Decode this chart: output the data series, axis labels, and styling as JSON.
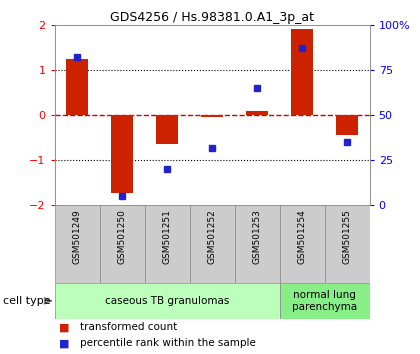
{
  "title": "GDS4256 / Hs.98381.0.A1_3p_at",
  "samples": [
    "GSM501249",
    "GSM501250",
    "GSM501251",
    "GSM501252",
    "GSM501253",
    "GSM501254",
    "GSM501255"
  ],
  "transformed_count": [
    1.25,
    -1.72,
    -0.65,
    -0.05,
    0.08,
    1.9,
    -0.45
  ],
  "percentile_rank": [
    82,
    5,
    20,
    32,
    65,
    87,
    35
  ],
  "ylim_left": [
    -2,
    2
  ],
  "ylim_right": [
    0,
    100
  ],
  "left_ticks": [
    -2,
    -1,
    0,
    1,
    2
  ],
  "right_ticks": [
    0,
    25,
    50,
    75,
    100
  ],
  "right_tick_labels": [
    "0",
    "25",
    "50",
    "75",
    "100%"
  ],
  "bar_color": "#CC2200",
  "dot_color": "#2222CC",
  "zero_line_color": "#CC0000",
  "dotted_line_color": "#000000",
  "cell_types": [
    {
      "label": "caseous TB granulomas",
      "start": 0,
      "end": 4,
      "color": "#bbffbb"
    },
    {
      "label": "normal lung\nparenchyma",
      "start": 5,
      "end": 6,
      "color": "#88ee88"
    }
  ],
  "legend_items": [
    {
      "color": "#CC2200",
      "label": "transformed count"
    },
    {
      "color": "#2222CC",
      "label": "percentile rank within the sample"
    }
  ],
  "cell_type_label": "cell type",
  "sample_box_color": "#cccccc",
  "plot_bg": "#ffffff"
}
